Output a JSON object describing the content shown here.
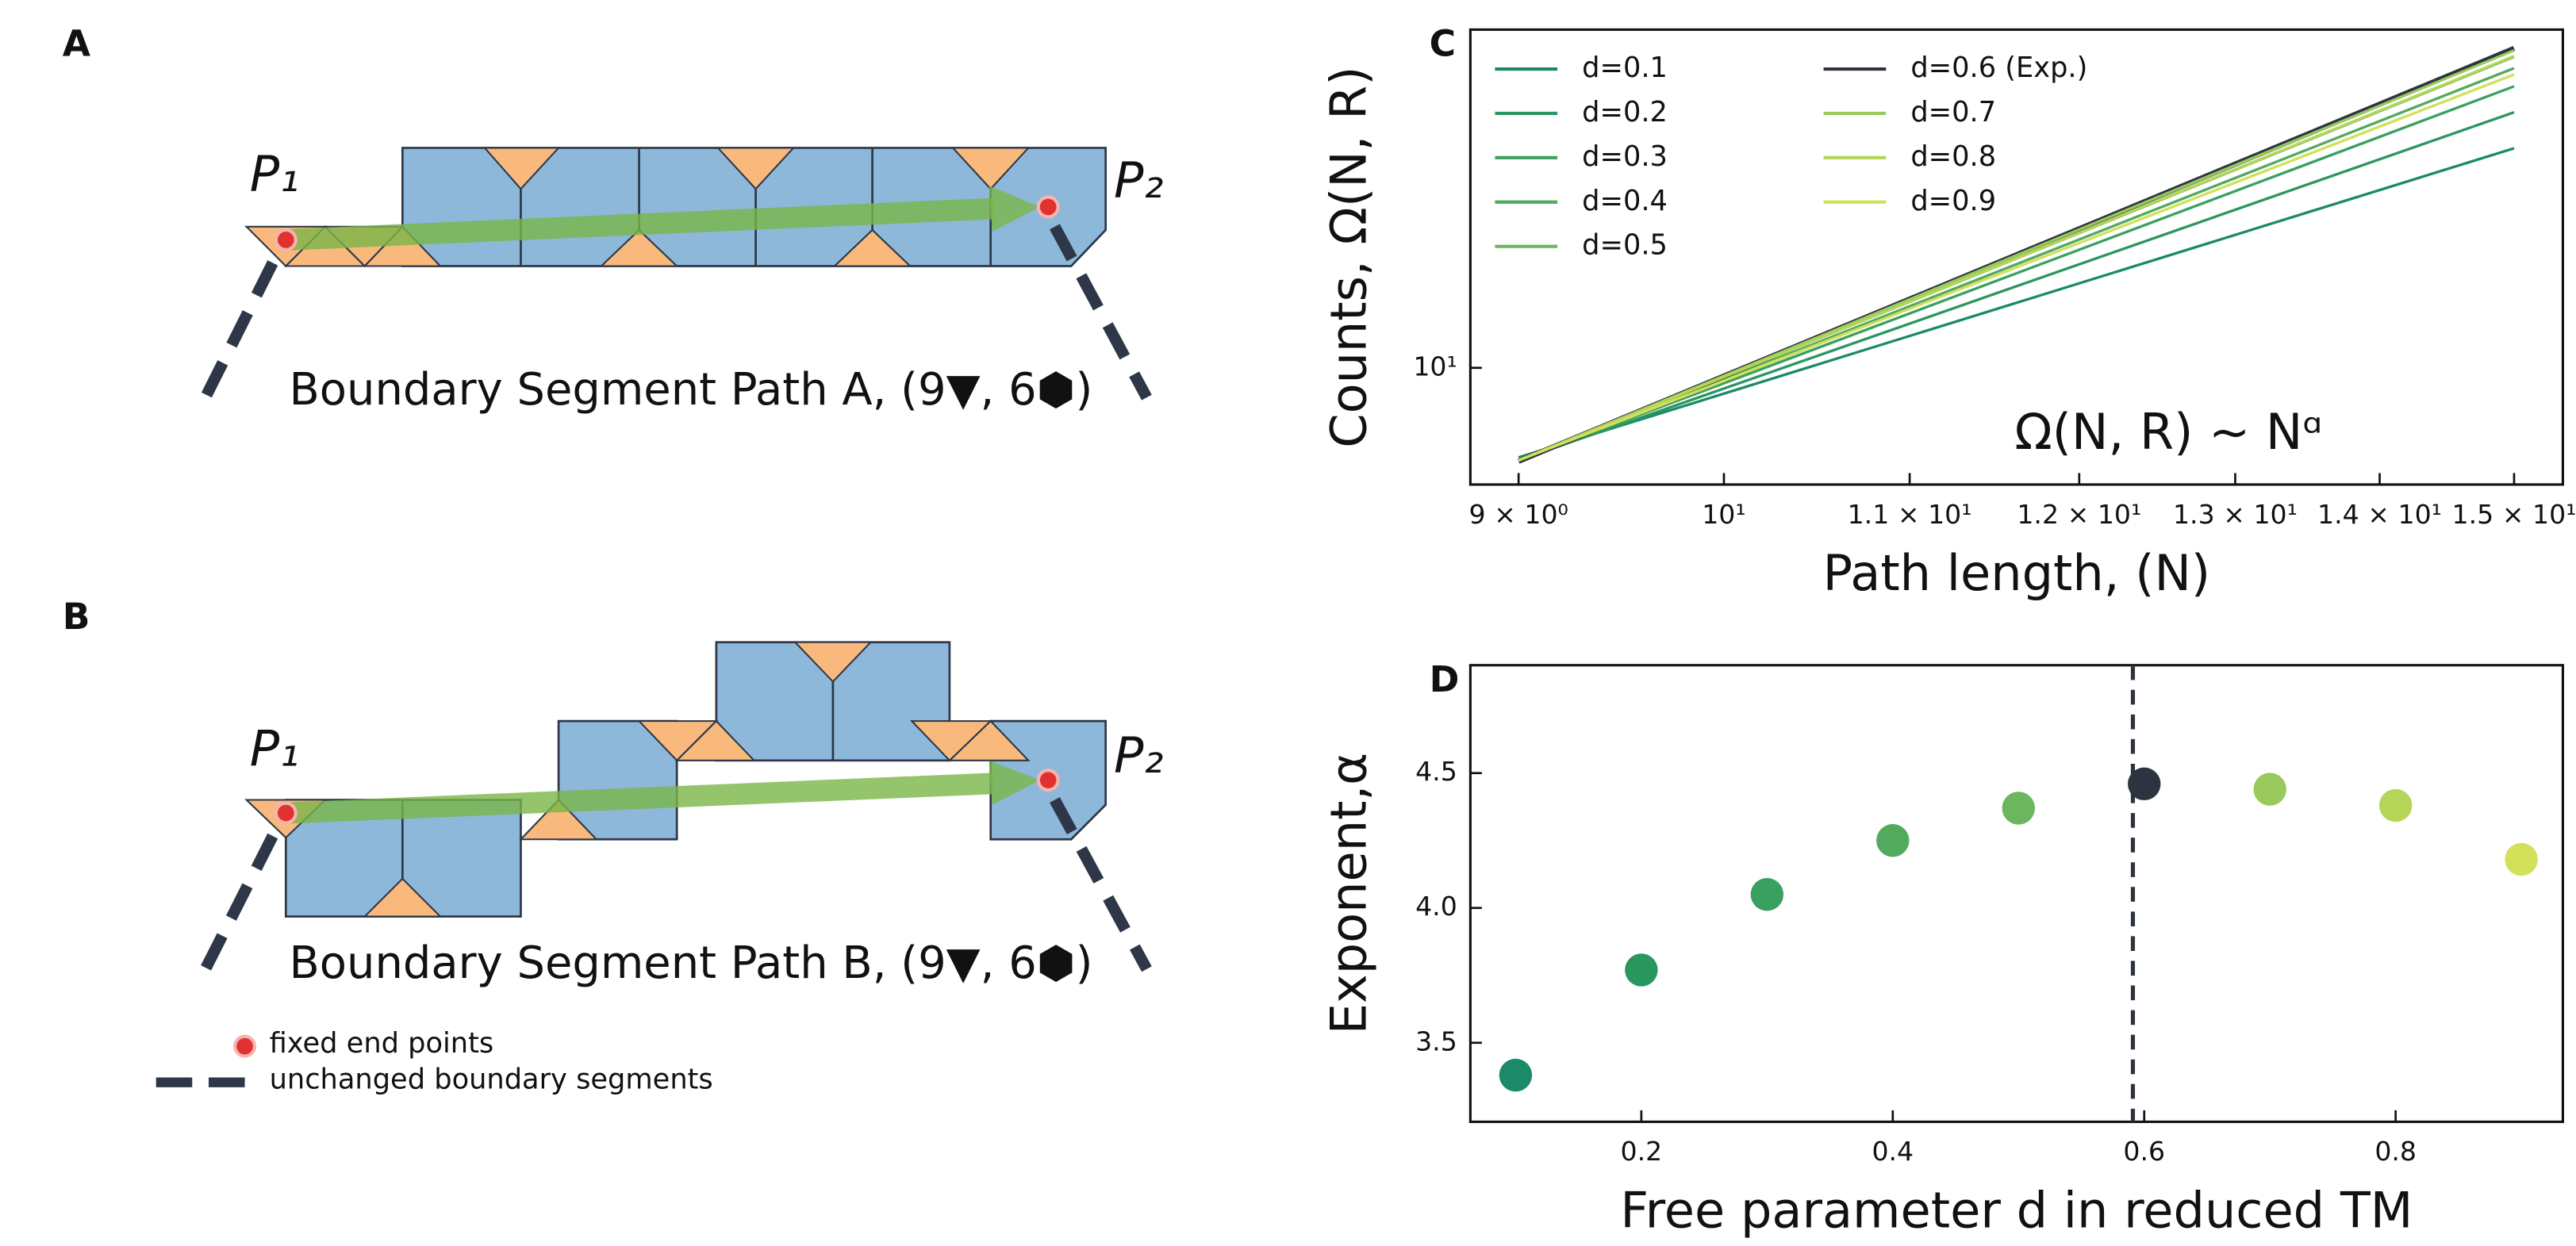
{
  "diagrams": {
    "a": {
      "label": "A",
      "p1": "P₁",
      "p2": "P₂",
      "caption": "Boundary Segment Path A, (9▼, 6⬢)"
    },
    "b": {
      "label": "B",
      "p1": "P₁",
      "p2": "P₂",
      "caption": "Boundary Segment Path B, (9▼, 6⬢)"
    },
    "legend": [
      "fixed end points",
      "unchanged boundary segments"
    ]
  },
  "chart_data": [
    {
      "type": "line",
      "panel": "C",
      "xlabel": "Path length, (N)",
      "ylabel": "Counts, Ω(N, R)",
      "annotation": "Ω(N, R) ∼ Nᵅ",
      "xscale": "log",
      "yscale": "log",
      "legend": "upper left",
      "x": [
        9,
        15
      ],
      "series": [
        {
          "name": "d=0.1",
          "color": "#1a8a68",
          "values": [
            6.1,
            33.6
          ]
        },
        {
          "name": "d=0.2",
          "color": "#2a9660",
          "values": [
            6.0,
            41.0
          ]
        },
        {
          "name": "d=0.3",
          "color": "#3aa060",
          "values": [
            6.0,
            47.3
          ]
        },
        {
          "name": "d=0.4",
          "color": "#52aa5e",
          "values": [
            6.0,
            52.3
          ]
        },
        {
          "name": "d=0.5",
          "color": "#6cb65e",
          "values": [
            6.0,
            55.7
          ]
        },
        {
          "name": "d=0.6 (Exp.)",
          "color": "#2d3440",
          "values": [
            5.97,
            58.3
          ]
        },
        {
          "name": "d=0.7",
          "color": "#98c95a",
          "values": [
            6.0,
            57.7
          ]
        },
        {
          "name": "d=0.8",
          "color": "#b4d557",
          "values": [
            6.0,
            55.9
          ]
        },
        {
          "name": "d=0.9",
          "color": "#d2e05a",
          "values": [
            6.0,
            50.5
          ]
        }
      ],
      "xlim": [
        8.78,
        15.38
      ],
      "ylim": [
        5.25,
        64.7
      ],
      "xticks": [
        {
          "value": 9,
          "label": "9 × 10⁰"
        },
        {
          "value": 10,
          "label": "10¹"
        },
        {
          "value": 11,
          "label": "1.1 × 10¹"
        },
        {
          "value": 12,
          "label": "1.2 × 10¹"
        },
        {
          "value": 13,
          "label": "1.3 × 10¹"
        },
        {
          "value": 14,
          "label": "1.4 × 10¹"
        },
        {
          "value": 15,
          "label": "1.5 × 10¹"
        }
      ],
      "yticks": [
        {
          "value": 10,
          "label": "10¹"
        }
      ]
    },
    {
      "type": "scatter",
      "panel": "D",
      "xlabel": "Free parameter d in reduced TM",
      "ylabel": "Exponent,α",
      "x": [
        0.1,
        0.2,
        0.3,
        0.4,
        0.5,
        0.6,
        0.7,
        0.8,
        0.9
      ],
      "values": [
        3.38,
        3.77,
        4.05,
        4.25,
        4.37,
        4.46,
        4.44,
        4.38,
        4.18
      ],
      "colors": [
        "#1a8a68",
        "#2a9660",
        "#3aa060",
        "#52aa5e",
        "#6cb65e",
        "#2d3440",
        "#98c95a",
        "#b4d557",
        "#d2e05a"
      ],
      "vline": 0.591,
      "xlim": [
        0.064,
        0.933
      ],
      "ylim": [
        3.207,
        4.9
      ],
      "xticks": [
        0.2,
        0.4,
        0.6,
        0.8
      ],
      "yticks": [
        3.5,
        {
          "value": 4,
          "label": "4.0"
        },
        4.5
      ]
    }
  ]
}
